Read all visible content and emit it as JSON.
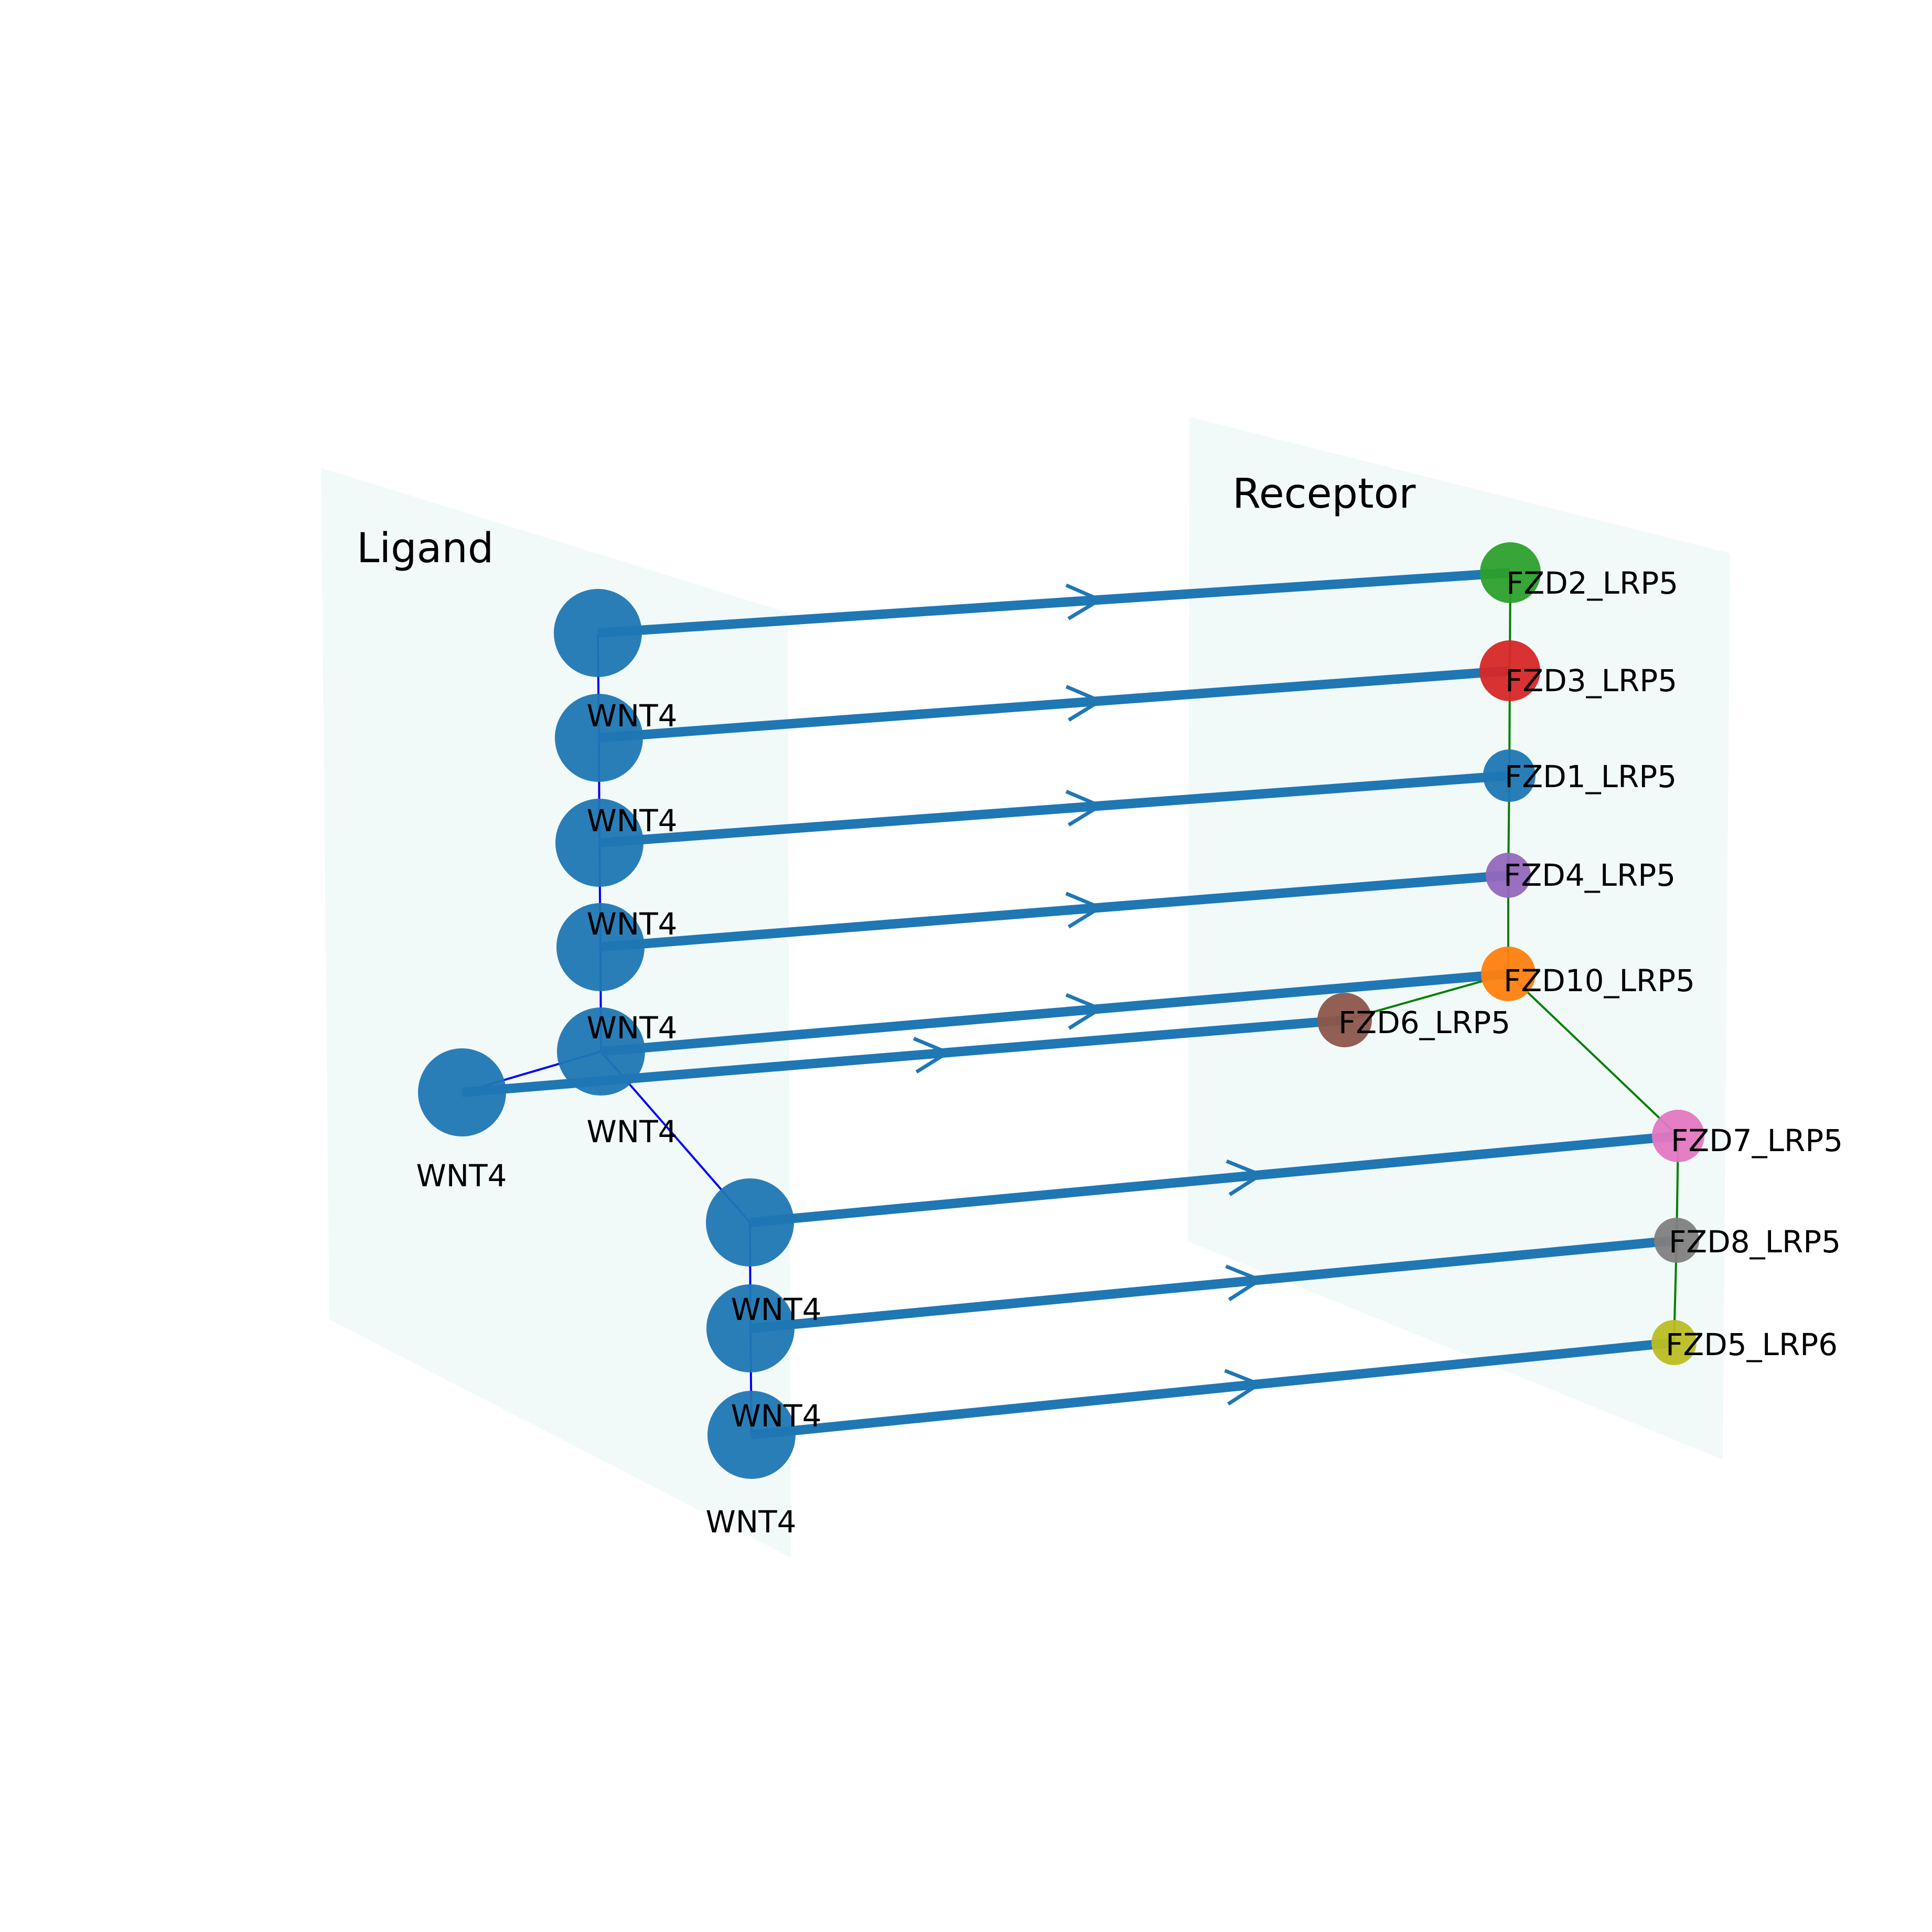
{
  "planes": {
    "ligand": {
      "title": "Ligand"
    },
    "receptor": {
      "title": "Receptor"
    }
  },
  "ligands": [
    {
      "id": "L1",
      "label": "WNT4"
    },
    {
      "id": "L2",
      "label": "WNT4"
    },
    {
      "id": "L3",
      "label": "WNT4"
    },
    {
      "id": "L4",
      "label": "WNT4"
    },
    {
      "id": "L5",
      "label": "WNT4"
    },
    {
      "id": "L6",
      "label": "WNT4"
    },
    {
      "id": "L7",
      "label": "WNT4"
    },
    {
      "id": "L8",
      "label": "WNT4"
    },
    {
      "id": "L9",
      "label": "WNT4"
    }
  ],
  "receptors": [
    {
      "id": "R1",
      "label": "FZD2_LRP5",
      "color": "#2ca02c"
    },
    {
      "id": "R2",
      "label": "FZD3_LRP5",
      "color": "#d62728"
    },
    {
      "id": "R3",
      "label": "FZD1_LRP5",
      "color": "#1f77b4"
    },
    {
      "id": "R4",
      "label": "FZD4_LRP5",
      "color": "#9467bd"
    },
    {
      "id": "R5",
      "label": "FZD10_LRP5",
      "color": "#ff7f0e"
    },
    {
      "id": "R6",
      "label": "FZD6_LRP5",
      "color": "#8c564b"
    },
    {
      "id": "R7",
      "label": "FZD7_LRP5",
      "color": "#e377c2"
    },
    {
      "id": "R8",
      "label": "FZD8_LRP5",
      "color": "#7f7f7f"
    },
    {
      "id": "R9",
      "label": "FZD5_LRP6",
      "color": "#bcbd22"
    }
  ],
  "interactions": [
    {
      "from": "L1",
      "to": "R1"
    },
    {
      "from": "L2",
      "to": "R2"
    },
    {
      "from": "L3",
      "to": "R3"
    },
    {
      "from": "L4",
      "to": "R4"
    },
    {
      "from": "L5",
      "to": "R5"
    },
    {
      "from": "L6",
      "to": "R6"
    },
    {
      "from": "L7",
      "to": "R7"
    },
    {
      "from": "L8",
      "to": "R8"
    },
    {
      "from": "L9",
      "to": "R9"
    }
  ],
  "colors": {
    "plane_fill": "#eaf5f5",
    "ligand_node": "#1f77b4",
    "interaction_edge": "#1f77b4",
    "ligand_tree": "#0000ff",
    "receptor_tree": "#008000"
  }
}
